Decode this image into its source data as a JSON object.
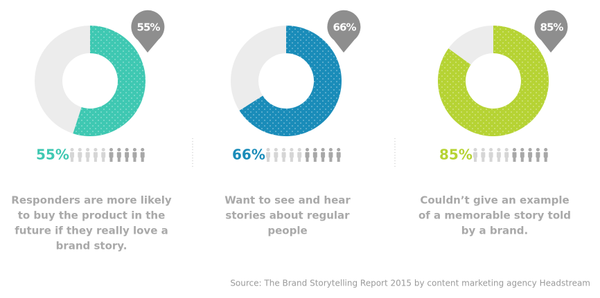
{
  "chart_data": [
    {
      "type": "pie",
      "values": [
        55,
        45
      ],
      "value_labels": [
        "55%",
        null
      ],
      "colors": [
        "#3fc8b2",
        "#ececec"
      ],
      "caption": [
        "Responders are more likely",
        "to buy the product in the",
        "future if they really love a",
        "brand story."
      ]
    },
    {
      "type": "pie",
      "values": [
        66,
        34
      ],
      "value_labels": [
        "66%",
        null
      ],
      "colors": [
        "#1a8cb9",
        "#ececec"
      ],
      "caption": [
        "Want to see and hear",
        "stories about regular",
        "people"
      ]
    },
    {
      "type": "pie",
      "values": [
        85,
        15
      ],
      "value_labels": [
        "85%",
        null
      ],
      "colors": [
        "#b6d334",
        "#ececec"
      ],
      "caption": [
        "Couldn’t give an example",
        "of a memorable story told",
        "by a brand."
      ]
    }
  ],
  "source": "Source: The Brand Storytelling Report 2015 by content marketing agency Headstream"
}
